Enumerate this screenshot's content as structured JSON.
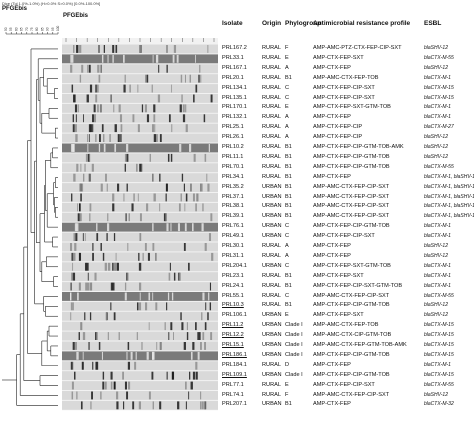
{
  "header": {
    "settings": "Dice (Tol 1.0%-1.0%) (H>0.0% S>0.0%) [0.0%-100.0%]",
    "title_left": "PFGEbis",
    "title_gel": "PFGEbis"
  },
  "columns": {
    "isolate": "Isolate",
    "origin": "Origin",
    "phylogroup": "Phylogroup",
    "amr": "Antimicrobial resistance profile",
    "esbl": "ESBL"
  },
  "rows": [
    {
      "isolate": "PRL167.2",
      "origin": "RURAL",
      "phylogroup": "F",
      "amr": "AMP-AMC-PTZ-CTX-FEP-CIP-SXT",
      "esbl": "blaSHV-12",
      "ul": false
    },
    {
      "isolate": "PRL33.1",
      "origin": "RURAL",
      "phylogroup": "E",
      "amr": "AMP-CTX-FEP-SXT",
      "esbl": "blaCTX-M-55",
      "ul": false
    },
    {
      "isolate": "PRL167.1",
      "origin": "RURAL",
      "phylogroup": "A",
      "amr": "AMP-CTX-FEP",
      "esbl": "blaSHV-12",
      "ul": false
    },
    {
      "isolate": "PRL20.1",
      "origin": "RURAL",
      "phylogroup": "B1",
      "amr": "AMP-AMC-CTX-FEP-TOB",
      "esbl": "blaCTX-M-1",
      "ul": false
    },
    {
      "isolate": "PRL134.1",
      "origin": "RURAL",
      "phylogroup": "C",
      "amr": "AMP-CTX-FEP-CIP-SXT",
      "esbl": "blaCTX-M-15",
      "ul": false
    },
    {
      "isolate": "PRL135.1",
      "origin": "RURAL",
      "phylogroup": "C",
      "amr": "AMP-CTX-FEP-CIP-SXT",
      "esbl": "blaCTX-M-15",
      "ul": false
    },
    {
      "isolate": "PRL170.1",
      "origin": "RURAL",
      "phylogroup": "E",
      "amr": "AMP-CTX-FEP-SXT-GTM-TOB",
      "esbl": "blaCTX-M-1",
      "ul": false
    },
    {
      "isolate": "PRL132.1",
      "origin": "RURAL",
      "phylogroup": "A",
      "amr": "AMP-CTX-FEP",
      "esbl": "blaCTX-M-1",
      "ul": false
    },
    {
      "isolate": "PRL25.1",
      "origin": "RURAL",
      "phylogroup": "A",
      "amr": "AMP-CTX-FEP-CIP",
      "esbl": "blaCTX-M-27",
      "ul": false
    },
    {
      "isolate": "PRL26.1",
      "origin": "RURAL",
      "phylogroup": "A",
      "amr": "AMP-CTX-FEP-CIP",
      "esbl": "blaSHV-12",
      "ul": false
    },
    {
      "isolate": "PRL10.2",
      "origin": "RURAL",
      "phylogroup": "B1",
      "amr": "AMP-CTX-FEP-CIP-GTM-TOB-AMK",
      "esbl": "blaSHV-12",
      "ul": false
    },
    {
      "isolate": "PRL11.1",
      "origin": "RURAL",
      "phylogroup": "B1",
      "amr": "AMP-CTX-FEP-CIP-GTM-TOB",
      "esbl": "blaSHV-12",
      "ul": false
    },
    {
      "isolate": "PRL70.1",
      "origin": "RURAL",
      "phylogroup": "B1",
      "amr": "AMP-CTX-FEP-CIP-GTM-TOB",
      "esbl": "blaCTX-M-55",
      "ul": false
    },
    {
      "isolate": "PRL34.1",
      "origin": "RURAL",
      "phylogroup": "B1",
      "amr": "AMP-CTX-FEP",
      "esbl": "blaCTX-M-1, blaSHV-12",
      "ul": false
    },
    {
      "isolate": "PRL35.2",
      "origin": "URBAN",
      "phylogroup": "B1",
      "amr": "AMP-AMC-CTX-FEP-CIP-SXT",
      "esbl": "blaCTX-M-1, blaSHV-12",
      "ul": false
    },
    {
      "isolate": "PRL37.1",
      "origin": "URBAN",
      "phylogroup": "B1",
      "amr": "AMP-AMC-CTX-FEP-CIP-SXT",
      "esbl": "blaCTX-M-1, blaSHV-12",
      "ul": false
    },
    {
      "isolate": "PRL38.1",
      "origin": "URBAN",
      "phylogroup": "B1",
      "amr": "AMP-AMC-CTX-FEP-CIP-SXT",
      "esbl": "blaCTX-M-1, blaSHV-12",
      "ul": false
    },
    {
      "isolate": "PRL39.1",
      "origin": "URBAN",
      "phylogroup": "B1",
      "amr": "AMP-AMC-CTX-FEP-CIP-SXT",
      "esbl": "blaCTX-M-1, blaSHV-12",
      "ul": false
    },
    {
      "isolate": "PRL76.1",
      "origin": "URBAN",
      "phylogroup": "C",
      "amr": "AMP-CTX-FEP-CIP-GTM-TOB",
      "esbl": "blaCTX-M-1",
      "ul": false
    },
    {
      "isolate": "PRL49.1",
      "origin": "URBAN",
      "phylogroup": "C",
      "amr": "AMP-CTX-FEP-CIP-SXT",
      "esbl": "blaCTX-M-1",
      "ul": false
    },
    {
      "isolate": "PRL30.1",
      "origin": "RURAL",
      "phylogroup": "A",
      "amr": "AMP-CTX-FEP",
      "esbl": "blaSHV-12",
      "ul": false
    },
    {
      "isolate": "PRL31.1",
      "origin": "RURAL",
      "phylogroup": "A",
      "amr": "AMP-CTX-FEP",
      "esbl": "blaSHV-12",
      "ul": false
    },
    {
      "isolate": "PRL204.1",
      "origin": "URBAN",
      "phylogroup": "C",
      "amr": "AMP-CTX-FEP-SXT-GTM-TOB",
      "esbl": "blaCTX-M-1",
      "ul": false
    },
    {
      "isolate": "PRL23.1",
      "origin": "RURAL",
      "phylogroup": "B1",
      "amr": "AMP-CTX-FEP-SXT",
      "esbl": "blaCTX-M-1",
      "ul": false
    },
    {
      "isolate": "PRL24.1",
      "origin": "RURAL",
      "phylogroup": "B1",
      "amr": "AMP-CTX-FEP-CIP-SXT-GTM-TOB",
      "esbl": "blaCTX-M-1",
      "ul": false
    },
    {
      "isolate": "PRL55.1",
      "origin": "RURAL",
      "phylogroup": "C",
      "amr": "AMP-AMC-CTX-FEP-CIP-SXT",
      "esbl": "blaCTX-M-55",
      "ul": false
    },
    {
      "isolate": "PRL10.3",
      "origin": "RURAL",
      "phylogroup": "B1",
      "amr": "AMP-CTX-FEP-CIP-GTM-TOB",
      "esbl": "blaSHV-12",
      "ul": true
    },
    {
      "isolate": "PRL106.1",
      "origin": "URBAN",
      "phylogroup": "E",
      "amr": "AMP-CTX-FEP-SXT",
      "esbl": "blaSHV-12",
      "ul": false
    },
    {
      "isolate": "PRL11.2",
      "origin": "URBAN",
      "phylogroup": "Clade I",
      "amr": "AMP-AMC-CTX-FEP-TOB",
      "esbl": "blaCTX-M-15",
      "ul": true
    },
    {
      "isolate": "PRL12.2",
      "origin": "URBAN",
      "phylogroup": "Clade I",
      "amr": "AMP-AMC-CTX-CIP-GTM-TOB",
      "esbl": "blaCTX-M-15",
      "ul": true
    },
    {
      "isolate": "PRL15.1",
      "origin": "URBAN",
      "phylogroup": "Clade I",
      "amr": "AMP-AMC-CTX-FEP-GTM-TOB-AMK",
      "esbl": "blaCTX-M-15",
      "ul": true
    },
    {
      "isolate": "PRL186.1",
      "origin": "URBAN",
      "phylogroup": "Clade I",
      "amr": "AMP-CTX-FEP-CIP-GTM-TOB",
      "esbl": "blaCTX-M-15",
      "ul": true
    },
    {
      "isolate": "PRL184.1",
      "origin": "RURAL",
      "phylogroup": "D",
      "amr": "AMP-CTX-FEP",
      "esbl": "blaCTX-M-1",
      "ul": false
    },
    {
      "isolate": "PRL109.1",
      "origin": "URBAN",
      "phylogroup": "Clade I",
      "amr": "AMP-CTX-FEP-CIP-GTM-TOB",
      "esbl": "blaCTX-M-15",
      "ul": true
    },
    {
      "isolate": "PRL77.1",
      "origin": "RURAL",
      "phylogroup": "E",
      "amr": "AMP-CTX-FEP-CIP-SXT",
      "esbl": "blaCTX-M-55",
      "ul": false
    },
    {
      "isolate": "PRL74.1",
      "origin": "RURAL",
      "phylogroup": "F",
      "amr": "AMP-AMC-CTX-FEP-CIP-SXT",
      "esbl": "blaSHV-12",
      "ul": false
    },
    {
      "isolate": "PRL207.1",
      "origin": "URBAN",
      "phylogroup": "B1",
      "amr": "AMP-CTX-FEP",
      "esbl": "blaCTX-M-32",
      "ul": false
    }
  ],
  "scale": {
    "ticks": [
      "50",
      "55",
      "60",
      "65",
      "70",
      "75",
      "80",
      "85",
      "90",
      "95",
      "100"
    ]
  },
  "colors": {
    "gel_background": "#f2f2f2",
    "band_dark": "#1a1a1a",
    "band_light": "#8c8c8c",
    "tree": "#222222"
  }
}
